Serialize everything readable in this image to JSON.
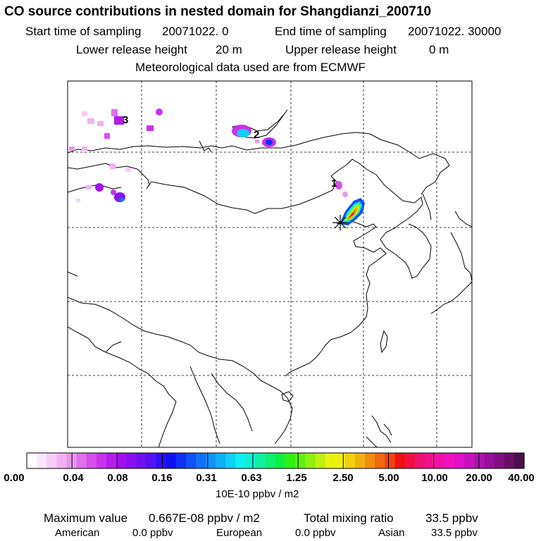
{
  "header": {
    "title": "CO  source contributions in nested domain for Shangdianzi_200710",
    "start_label": "Start time of sampling",
    "start_value": "20071022.     0",
    "end_label": "End time of sampling",
    "end_value": "20071022. 30000",
    "lower_release_label": "Lower release height",
    "lower_release_value": "20 m",
    "upper_release_label": "Upper release height",
    "upper_release_value": "0 m",
    "met_data": "Meteorological data used are from ECMWF"
  },
  "map": {
    "markers": [
      {
        "label": "1"
      },
      {
        "label": "2"
      },
      {
        "label": "3"
      }
    ],
    "station_marker": "asterisk-receptor"
  },
  "legend": {
    "ticks": [
      "0.00",
      "0.04",
      "0.08",
      "0.16",
      "0.31",
      "0.63",
      "1.25",
      "2.50",
      "5.00",
      "10.00",
      "20.00",
      "40.00"
    ],
    "unit": "10E-10 ppbv / m2",
    "colors": [
      "#ffffff",
      "#fde6fd",
      "#f8ccf8",
      "#f2b2f2",
      "#ea96ee",
      "#e070ec",
      "#d650ec",
      "#c832ec",
      "#b41cec",
      "#a010ee",
      "#8a10f0",
      "#7010f0",
      "#5810f4",
      "#3010f4",
      "#1010f4",
      "#1030f4",
      "#1050f6",
      "#1070f6",
      "#1490f6",
      "#10b0f6",
      "#10d0f6",
      "#10f0f0",
      "#10f0d0",
      "#10f0a0",
      "#10f070",
      "#10f040",
      "#30f010",
      "#60f010",
      "#90f010",
      "#c0f010",
      "#e8f010",
      "#f0f010",
      "#f0d010",
      "#f0b010",
      "#f08c10",
      "#f06810",
      "#f04410",
      "#f01010",
      "#f01040",
      "#f01070",
      "#f01090",
      "#f010a8",
      "#f010c0",
      "#e010c8",
      "#c810c0",
      "#b010b0",
      "#981098",
      "#801080",
      "#681068",
      "#4a104a"
    ]
  },
  "stats": {
    "max_label": "Maximum value",
    "max_value": "0.667E-08 ppbv / m2",
    "total_label": "Total mixing ratio",
    "total_value": "33.5 ppbv",
    "regions": [
      {
        "name": "American",
        "value": "0.0 ppbv"
      },
      {
        "name": "European",
        "value": "0.0 ppbv"
      },
      {
        "name": "Asian",
        "value": "33.5 ppbv"
      }
    ]
  }
}
